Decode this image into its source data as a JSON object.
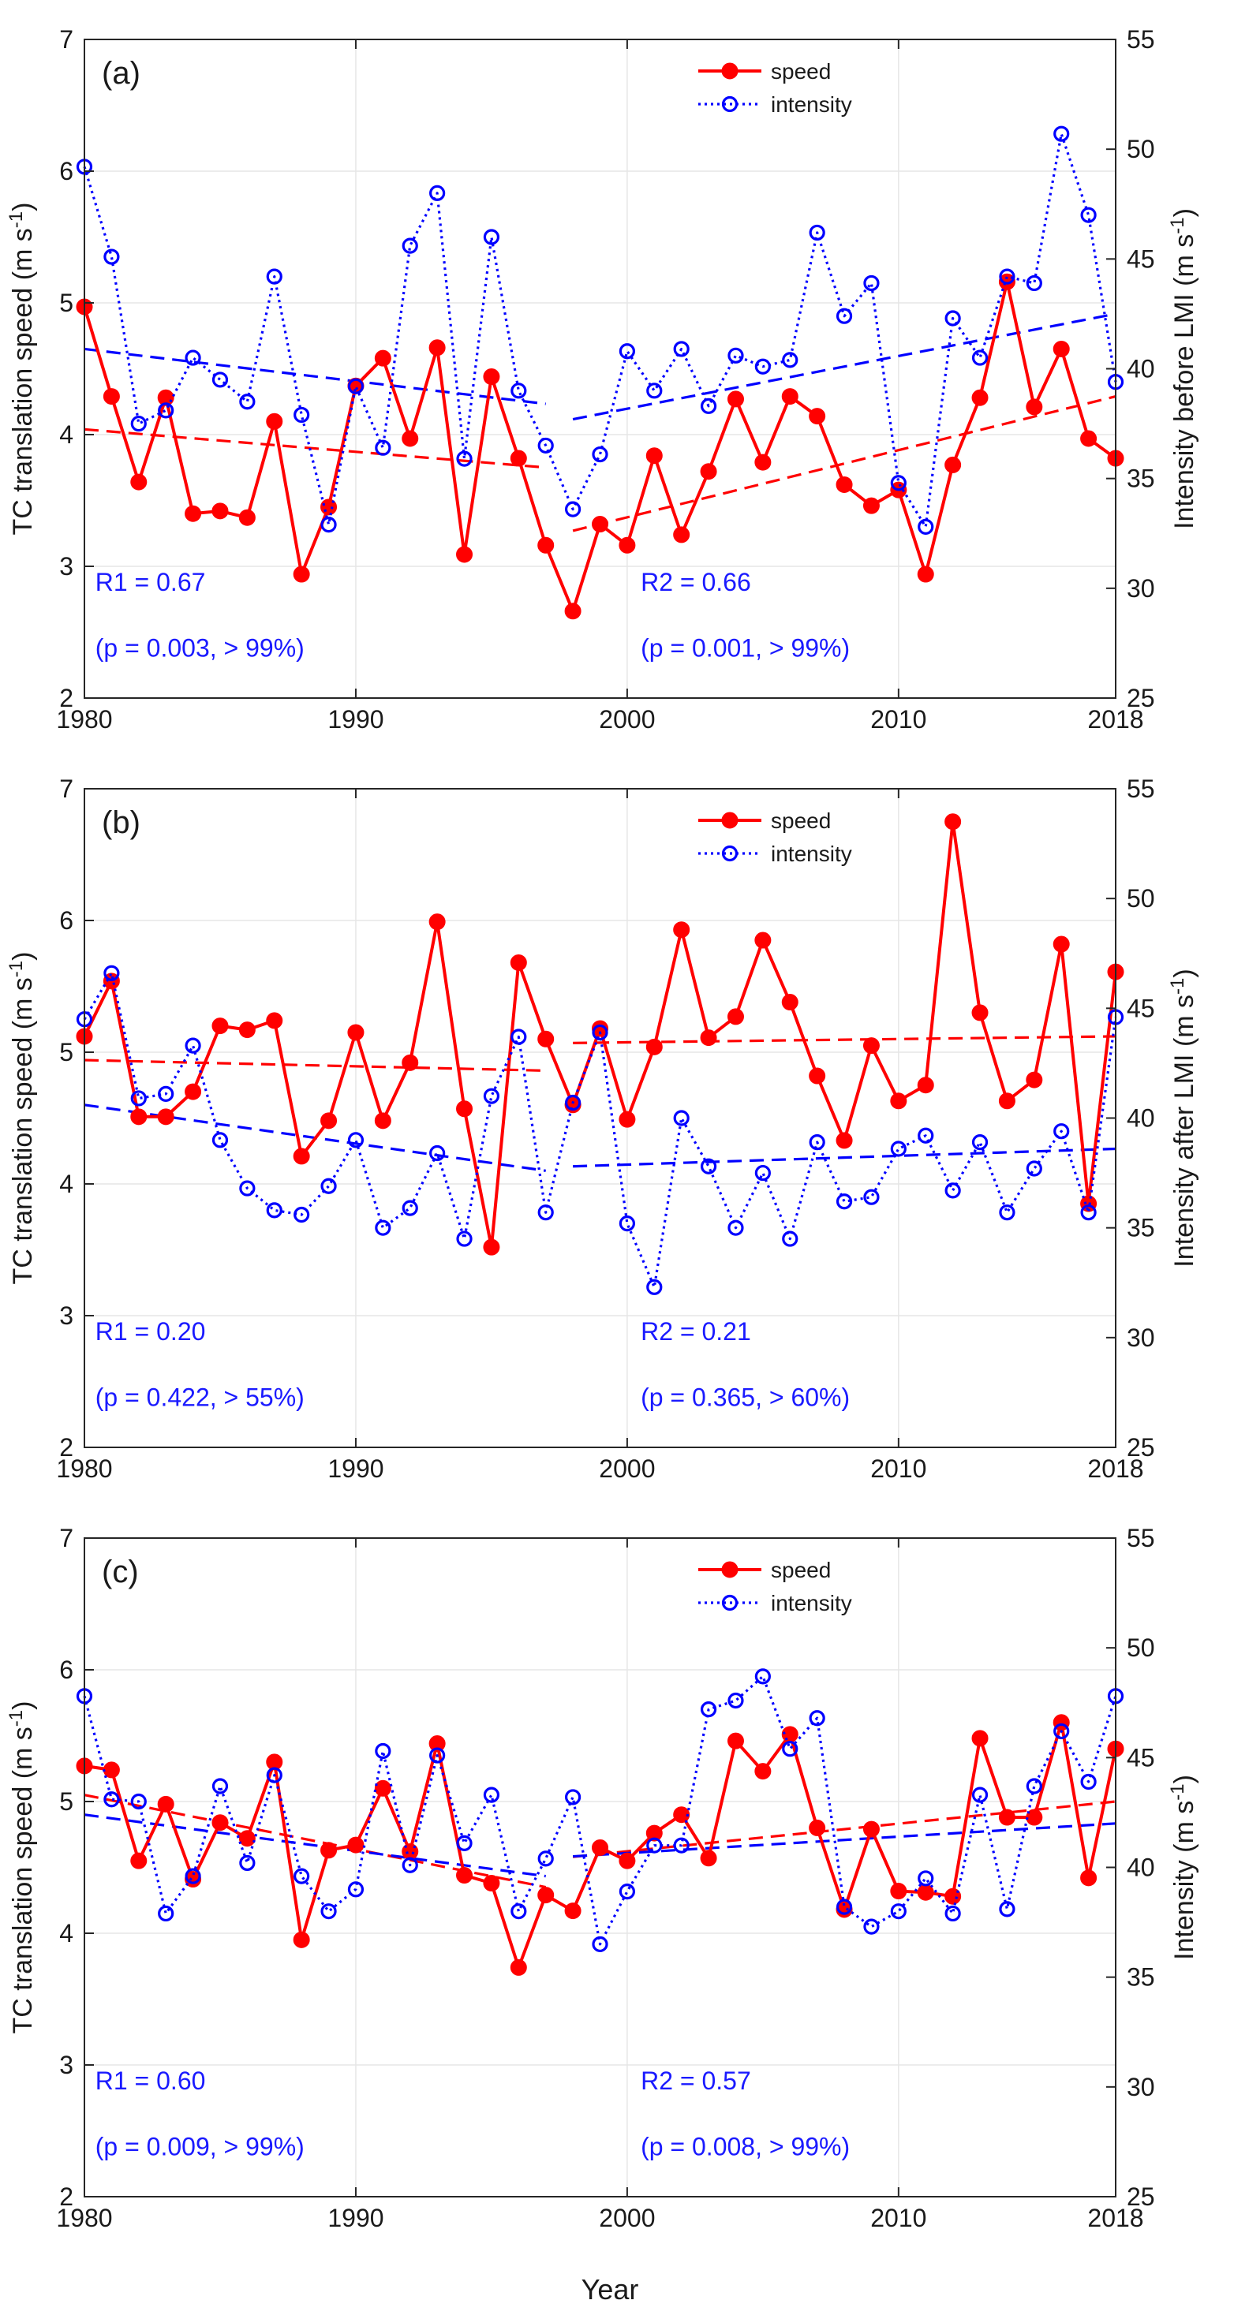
{
  "figure": {
    "xlabel": "Year",
    "colors": {
      "speed": "#ff0000",
      "intensity": "#0000ff",
      "annotation": "#1a1aff",
      "grid": "#e6e6e6",
      "axis": "#262626"
    }
  },
  "chart_data": [
    {
      "type": "line",
      "panel_label": "(a)",
      "xlim": [
        1980,
        2018
      ],
      "x_ticks": [
        1980,
        1990,
        2000,
        2010,
        2018
      ],
      "ylim": [
        2,
        7
      ],
      "y_ticks": [
        2,
        3,
        4,
        5,
        6,
        7
      ],
      "y2lim": [
        25,
        55
      ],
      "y2_ticks": [
        25,
        30,
        35,
        40,
        45,
        50,
        55
      ],
      "ylabel": "TC translation speed (m s-1)",
      "y2label": "Intensity before LMI (m s-1)",
      "legend": [
        "speed",
        "intensity"
      ],
      "series": [
        {
          "name": "speed",
          "axis": "left",
          "x": [
            1980,
            1981,
            1982,
            1983,
            1984,
            1985,
            1986,
            1987,
            1988,
            1989,
            1990,
            1991,
            1992,
            1993,
            1994,
            1995,
            1996,
            1997,
            1998,
            1999,
            2000,
            2001,
            2002,
            2003,
            2004,
            2005,
            2006,
            2007,
            2008,
            2009,
            2010,
            2011,
            2012,
            2013,
            2014,
            2015,
            2016,
            2017,
            2018
          ],
          "values": [
            4.97,
            4.29,
            3.64,
            4.28,
            3.4,
            3.42,
            3.37,
            4.1,
            2.94,
            3.45,
            4.37,
            4.58,
            3.97,
            4.66,
            3.09,
            4.44,
            3.82,
            3.16,
            2.66,
            3.32,
            3.16,
            3.84,
            3.24,
            3.72,
            4.27,
            3.79,
            4.29,
            4.14,
            3.62,
            3.46,
            3.58,
            2.94,
            3.77,
            4.28,
            5.16,
            4.21,
            4.65,
            3.97,
            3.82
          ]
        },
        {
          "name": "intensity",
          "axis": "right",
          "x": [
            1980,
            1981,
            1982,
            1983,
            1984,
            1985,
            1986,
            1987,
            1988,
            1989,
            1990,
            1991,
            1992,
            1993,
            1994,
            1995,
            1996,
            1997,
            1998,
            1999,
            2000,
            2001,
            2002,
            2003,
            2004,
            2005,
            2006,
            2007,
            2008,
            2009,
            2010,
            2011,
            2012,
            2013,
            2014,
            2015,
            2016,
            2017,
            2018
          ],
          "values": [
            49.2,
            45.1,
            37.5,
            38.1,
            40.5,
            39.5,
            38.5,
            44.2,
            37.9,
            32.9,
            39.2,
            36.4,
            45.6,
            48.0,
            35.9,
            46.0,
            39.0,
            36.5,
            33.6,
            36.1,
            40.8,
            39.0,
            40.9,
            38.3,
            40.6,
            40.1,
            40.4,
            46.2,
            42.4,
            43.9,
            34.8,
            32.8,
            42.3,
            40.5,
            44.2,
            43.9,
            50.7,
            47.0,
            39.4
          ]
        }
      ],
      "trends": [
        {
          "series": "speed",
          "x": [
            1980,
            1997
          ],
          "values": [
            4.04,
            3.75
          ]
        },
        {
          "series": "speed",
          "x": [
            1998,
            2018
          ],
          "values": [
            3.27,
            4.29
          ]
        },
        {
          "series": "intensity",
          "axis": "right",
          "x": [
            1980,
            1997
          ],
          "values": [
            40.9,
            38.4
          ]
        },
        {
          "series": "intensity",
          "axis": "right",
          "x": [
            1998,
            2018
          ],
          "values": [
            37.7,
            42.5
          ]
        }
      ],
      "annotations": [
        {
          "text": "R1 = 0.67",
          "x": 1980.4,
          "y": 2.88
        },
        {
          "text": "(p = 0.003, > 99%)",
          "x": 1980.4,
          "y": 2.38
        },
        {
          "text": "R2 = 0.66",
          "x": 2000.5,
          "y": 2.88
        },
        {
          "text": "(p = 0.001, > 99%)",
          "x": 2000.5,
          "y": 2.38
        }
      ]
    },
    {
      "type": "line",
      "panel_label": "(b)",
      "xlim": [
        1980,
        2018
      ],
      "x_ticks": [
        1980,
        1990,
        2000,
        2010,
        2018
      ],
      "ylim": [
        2,
        7
      ],
      "y_ticks": [
        2,
        3,
        4,
        5,
        6,
        7
      ],
      "y2lim": [
        25,
        55
      ],
      "y2_ticks": [
        25,
        30,
        35,
        40,
        45,
        50,
        55
      ],
      "ylabel": "TC translation speed (m s-1)",
      "y2label": "Intensity after LMI (m s-1)",
      "legend": [
        "speed",
        "intensity"
      ],
      "series": [
        {
          "name": "speed",
          "axis": "left",
          "x": [
            1980,
            1981,
            1982,
            1983,
            1984,
            1985,
            1986,
            1987,
            1988,
            1989,
            1990,
            1991,
            1992,
            1993,
            1994,
            1995,
            1996,
            1997,
            1998,
            1999,
            2000,
            2001,
            2002,
            2003,
            2004,
            2005,
            2006,
            2007,
            2008,
            2009,
            2010,
            2011,
            2012,
            2013,
            2014,
            2015,
            2016,
            2017,
            2018
          ],
          "values": [
            5.12,
            5.54,
            4.51,
            4.51,
            4.7,
            5.2,
            5.17,
            5.24,
            4.21,
            4.48,
            5.15,
            4.48,
            4.92,
            5.99,
            4.57,
            3.52,
            5.68,
            5.1,
            4.6,
            5.18,
            4.49,
            5.04,
            5.93,
            5.11,
            5.27,
            5.85,
            5.38,
            4.82,
            4.33,
            5.05,
            4.63,
            4.75,
            6.75,
            5.3,
            4.63,
            4.79,
            5.82,
            3.85,
            5.61
          ]
        },
        {
          "name": "intensity",
          "axis": "right",
          "x": [
            1980,
            1981,
            1982,
            1983,
            1984,
            1985,
            1986,
            1987,
            1988,
            1989,
            1990,
            1991,
            1992,
            1993,
            1994,
            1995,
            1996,
            1997,
            1998,
            1999,
            2000,
            2001,
            2002,
            2003,
            2004,
            2005,
            2006,
            2007,
            2008,
            2009,
            2010,
            2011,
            2012,
            2013,
            2014,
            2015,
            2016,
            2017,
            2018
          ],
          "values": [
            44.5,
            46.6,
            40.9,
            41.1,
            43.3,
            39.0,
            36.8,
            35.8,
            35.6,
            36.9,
            39.0,
            35.0,
            35.9,
            38.4,
            34.5,
            41.0,
            43.7,
            35.7,
            40.7,
            43.9,
            35.2,
            32.3,
            40.0,
            37.8,
            35.0,
            37.5,
            34.5,
            38.9,
            36.2,
            36.4,
            38.6,
            39.2,
            36.7,
            38.9,
            35.7,
            37.7,
            39.4,
            35.7,
            44.6
          ]
        }
      ],
      "trends": [
        {
          "series": "speed",
          "x": [
            1980,
            1997
          ],
          "values": [
            4.94,
            4.86
          ]
        },
        {
          "series": "speed",
          "x": [
            1998,
            2018
          ],
          "values": [
            5.07,
            5.12
          ]
        },
        {
          "series": "intensity",
          "axis": "right",
          "x": [
            1980,
            1997
          ],
          "values": [
            40.6,
            37.6
          ]
        },
        {
          "series": "intensity",
          "axis": "right",
          "x": [
            1998,
            2018
          ],
          "values": [
            37.8,
            38.6
          ]
        }
      ],
      "annotations": [
        {
          "text": "R1 = 0.20",
          "x": 1980.4,
          "y": 2.88
        },
        {
          "text": "(p = 0.422, > 55%)",
          "x": 1980.4,
          "y": 2.38
        },
        {
          "text": "R2 = 0.21",
          "x": 2000.5,
          "y": 2.88
        },
        {
          "text": "(p = 0.365, > 60%)",
          "x": 2000.5,
          "y": 2.38
        }
      ]
    },
    {
      "type": "line",
      "panel_label": "(c)",
      "xlim": [
        1980,
        2018
      ],
      "x_ticks": [
        1980,
        1990,
        2000,
        2010,
        2018
      ],
      "ylim": [
        2,
        7
      ],
      "y_ticks": [
        2,
        3,
        4,
        5,
        6,
        7
      ],
      "y2lim": [
        25,
        55
      ],
      "y2_ticks": [
        25,
        30,
        35,
        40,
        45,
        50,
        55
      ],
      "ylabel": "TC translation speed (m s-1)",
      "y2label": "Intensity (m s-1)",
      "legend": [
        "speed",
        "intensity"
      ],
      "series": [
        {
          "name": "speed",
          "axis": "left",
          "x": [
            1980,
            1981,
            1982,
            1983,
            1984,
            1985,
            1986,
            1987,
            1988,
            1989,
            1990,
            1991,
            1992,
            1993,
            1994,
            1995,
            1996,
            1997,
            1998,
            1999,
            2000,
            2001,
            2002,
            2003,
            2004,
            2005,
            2006,
            2007,
            2008,
            2009,
            2010,
            2011,
            2012,
            2013,
            2014,
            2015,
            2016,
            2017,
            2018
          ],
          "values": [
            5.27,
            5.24,
            4.55,
            4.98,
            4.41,
            4.84,
            4.72,
            5.3,
            3.95,
            4.63,
            4.67,
            5.1,
            4.62,
            5.44,
            4.44,
            4.38,
            3.74,
            4.29,
            4.17,
            4.65,
            4.55,
            4.76,
            4.9,
            4.57,
            5.46,
            5.23,
            5.51,
            4.8,
            4.18,
            4.79,
            4.32,
            4.31,
            4.28,
            5.48,
            4.88,
            4.88,
            5.6,
            4.42,
            5.4
          ]
        },
        {
          "name": "intensity",
          "axis": "right",
          "x": [
            1980,
            1981,
            1982,
            1983,
            1984,
            1985,
            1986,
            1987,
            1988,
            1989,
            1990,
            1991,
            1992,
            1993,
            1994,
            1995,
            1996,
            1997,
            1998,
            1999,
            2000,
            2001,
            2002,
            2003,
            2004,
            2005,
            2006,
            2007,
            2008,
            2009,
            2010,
            2011,
            2012,
            2013,
            2014,
            2015,
            2016,
            2017,
            2018
          ],
          "values": [
            47.8,
            43.1,
            43.0,
            37.9,
            39.6,
            43.7,
            40.2,
            44.2,
            39.6,
            38.0,
            39.0,
            45.3,
            40.1,
            45.1,
            41.1,
            43.3,
            38.0,
            40.4,
            43.2,
            36.5,
            38.9,
            41.0,
            41.0,
            47.2,
            47.6,
            48.7,
            45.4,
            46.8,
            38.2,
            37.3,
            38.0,
            39.5,
            37.9,
            43.3,
            38.1,
            43.7,
            46.2,
            43.9,
            47.8
          ]
        }
      ],
      "trends": [
        {
          "series": "speed",
          "x": [
            1980,
            1997
          ],
          "values": [
            5.05,
            4.35
          ]
        },
        {
          "series": "speed",
          "x": [
            1998,
            2018
          ],
          "values": [
            4.58,
            5.0
          ]
        },
        {
          "series": "intensity",
          "axis": "right",
          "x": [
            1980,
            1997
          ],
          "values": [
            42.4,
            39.6
          ]
        },
        {
          "series": "intensity",
          "axis": "right",
          "x": [
            1998,
            2018
          ],
          "values": [
            40.5,
            42.0
          ]
        }
      ],
      "annotations": [
        {
          "text": "R1 = 0.60",
          "x": 1980.4,
          "y": 2.88
        },
        {
          "text": "(p = 0.009, > 99%)",
          "x": 1980.4,
          "y": 2.38
        },
        {
          "text": "R2 = 0.57",
          "x": 2000.5,
          "y": 2.88
        },
        {
          "text": "(p = 0.008, > 99%)",
          "x": 2000.5,
          "y": 2.38
        }
      ]
    }
  ]
}
